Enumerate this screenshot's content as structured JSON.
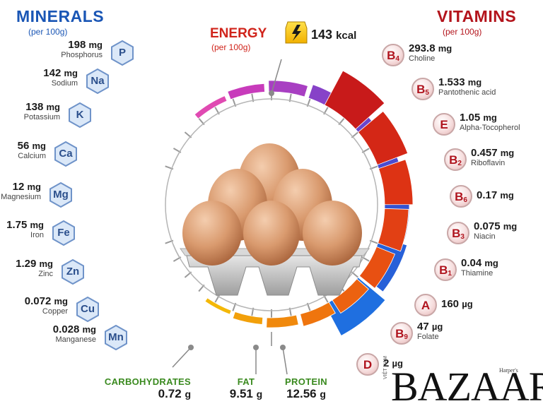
{
  "minerals": {
    "title": "MINERALS",
    "subtitle": "(per 100g)",
    "items": [
      {
        "symbol": "P",
        "amount": "198",
        "unit": "mg",
        "name": "Phosphorus"
      },
      {
        "symbol": "Na",
        "amount": "142",
        "unit": "mg",
        "name": "Sodium"
      },
      {
        "symbol": "K",
        "amount": "138",
        "unit": "mg",
        "name": "Potassium"
      },
      {
        "symbol": "Ca",
        "amount": "56",
        "unit": "mg",
        "name": "Calcium"
      },
      {
        "symbol": "Mg",
        "amount": "12",
        "unit": "mg",
        "name": "Magnesium"
      },
      {
        "symbol": "Fe",
        "amount": "1.75",
        "unit": "mg",
        "name": "Iron"
      },
      {
        "symbol": "Zn",
        "amount": "1.29",
        "unit": "mg",
        "name": "Zinc"
      },
      {
        "symbol": "Cu",
        "amount": "0.072",
        "unit": "mg",
        "name": "Copper"
      },
      {
        "symbol": "Mn",
        "amount": "0.028",
        "unit": "mg",
        "name": "Manganese"
      }
    ]
  },
  "vitamins": {
    "title": "VITAMINS",
    "subtitle": "(per 100g)",
    "items": [
      {
        "letter": "B",
        "sub": "4",
        "amount": "293.8",
        "unit": "mg",
        "name": "Choline"
      },
      {
        "letter": "B",
        "sub": "5",
        "amount": "1.533",
        "unit": "mg",
        "name": "Pantothenic acid"
      },
      {
        "letter": "E",
        "sub": "",
        "amount": "1.05",
        "unit": "mg",
        "name": "Alpha-Tocopherol"
      },
      {
        "letter": "B",
        "sub": "2",
        "amount": "0.457",
        "unit": "mg",
        "name": "Riboflavin"
      },
      {
        "letter": "B",
        "sub": "6",
        "amount": "0.17",
        "unit": "mg",
        "name": ""
      },
      {
        "letter": "B",
        "sub": "3",
        "amount": "0.075",
        "unit": "mg",
        "name": "Niacin"
      },
      {
        "letter": "B",
        "sub": "1",
        "amount": "0.04",
        "unit": "mg",
        "name": "Thiamine"
      },
      {
        "letter": "A",
        "sub": "",
        "amount": "160",
        "unit": "µg",
        "name": ""
      },
      {
        "letter": "B",
        "sub": "9",
        "amount": "47",
        "unit": "µg",
        "name": "Folate"
      },
      {
        "letter": "D",
        "sub": "",
        "amount": "2",
        "unit": "µg",
        "name": ""
      }
    ]
  },
  "energy": {
    "title": "ENERGY",
    "subtitle": "(per 100g)",
    "value": "143",
    "unit": "kcal"
  },
  "macros": [
    {
      "label": "CARBOHYDRATES",
      "amount": "0.72",
      "unit": "g"
    },
    {
      "label": "FAT",
      "amount": "9.51",
      "unit": "g"
    },
    {
      "label": "PROTEIN",
      "amount": "12.56",
      "unit": "g"
    }
  ],
  "watermark": {
    "brand": "BAZAAR",
    "small_left": "VIỆT NAM",
    "small_top": "Harper's"
  },
  "colors": {
    "minerals": "#1a56b5",
    "vitamins": "#b3141c",
    "energy": "#d0241b",
    "green": "#3a8a1f",
    "bolt": "#f4c400"
  }
}
